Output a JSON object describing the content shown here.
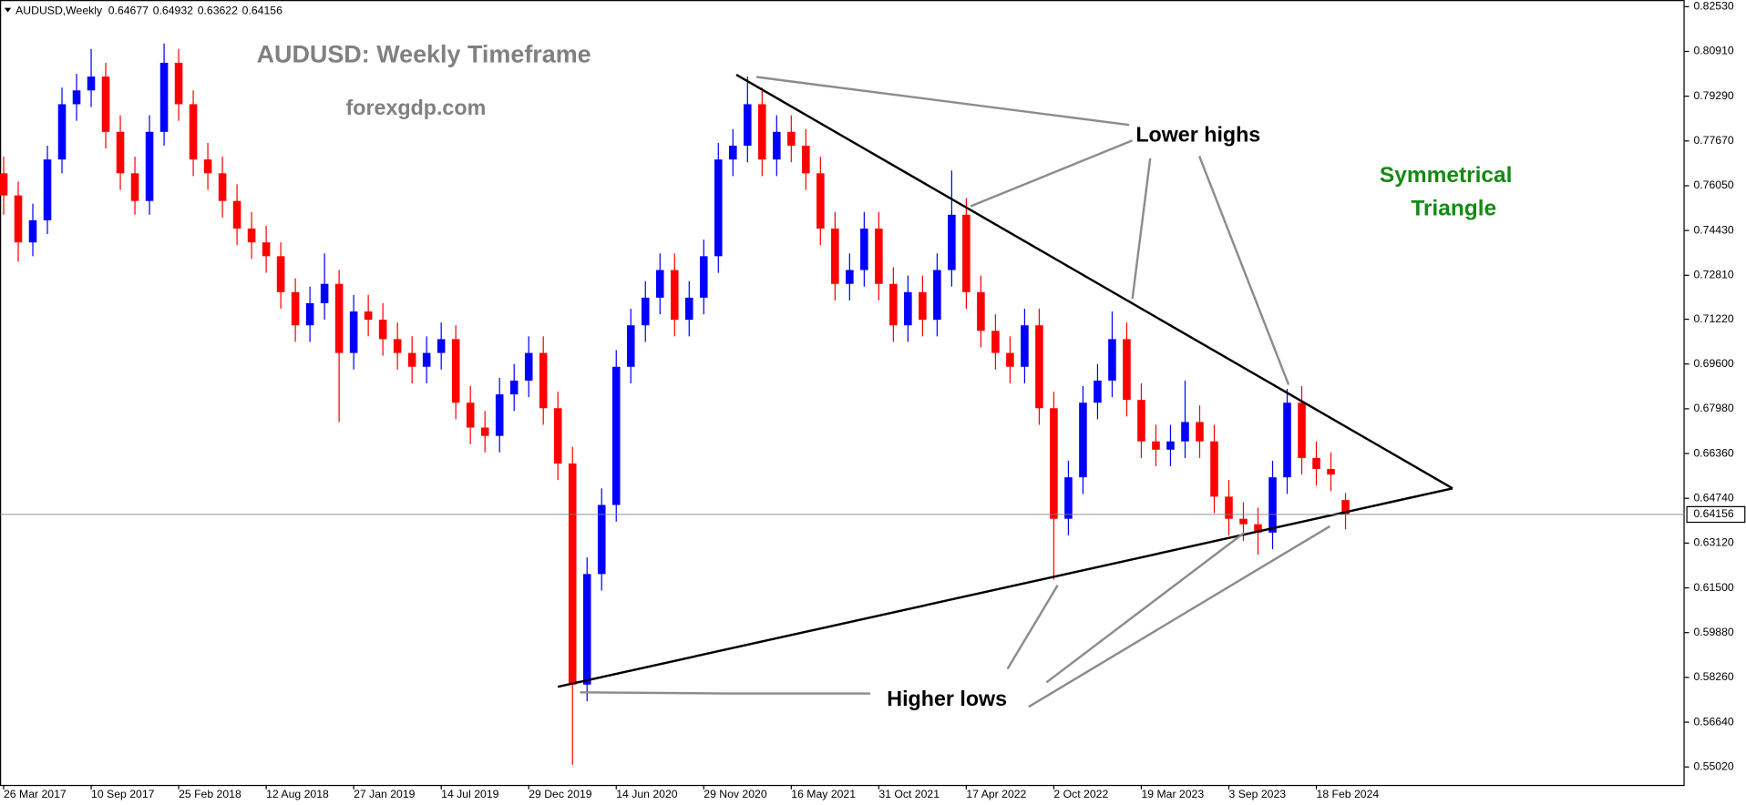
{
  "chart_data": {
    "type": "candlestick",
    "symbol": "AUDUSD,Weekly",
    "title": "AUDUSD: Weekly Timeframe",
    "subtitle": "forexgdp.com",
    "annotations": {
      "lower_highs": "Lower highs",
      "higher_lows": "Higher lows",
      "pattern": [
        "Symmetrical",
        "Triangle"
      ]
    },
    "up_color": "#0000ff",
    "down_color": "#ff0000",
    "x": [
      0,
      4,
      8,
      12,
      16,
      20,
      24,
      28,
      32,
      36,
      40,
      44,
      48,
      52,
      56,
      60,
      64,
      68,
      72,
      76,
      80,
      84,
      88,
      92,
      96,
      100,
      104,
      108,
      112,
      116,
      120,
      124,
      128,
      132,
      136,
      140,
      144,
      148,
      152,
      156,
      160,
      164,
      168,
      172,
      176,
      180,
      184,
      188,
      192,
      196,
      200,
      204,
      208,
      212,
      216,
      220,
      224,
      228,
      232,
      236,
      240,
      244,
      248,
      252,
      256,
      260,
      264,
      268,
      272,
      276,
      280,
      284,
      288,
      292,
      296,
      300,
      304,
      308,
      312,
      316,
      320,
      324,
      328,
      332,
      336,
      340,
      344,
      348,
      352,
      356,
      360,
      364,
      368
    ],
    "open": [
      0.765,
      0.757,
      0.74,
      0.748,
      0.77,
      0.79,
      0.795,
      0.8,
      0.78,
      0.765,
      0.755,
      0.78,
      0.805,
      0.79,
      0.77,
      0.765,
      0.755,
      0.745,
      0.74,
      0.735,
      0.722,
      0.71,
      0.718,
      0.725,
      0.7,
      0.715,
      0.712,
      0.705,
      0.7,
      0.695,
      0.7,
      0.705,
      0.682,
      0.673,
      0.67,
      0.685,
      0.69,
      0.7,
      0.68,
      0.66,
      0.58,
      0.62,
      0.645,
      0.695,
      0.71,
      0.72,
      0.73,
      0.712,
      0.72,
      0.735,
      0.77,
      0.775,
      0.79,
      0.77,
      0.78,
      0.775,
      0.765,
      0.745,
      0.725,
      0.73,
      0.745,
      0.725,
      0.71,
      0.722,
      0.712,
      0.73,
      0.75,
      0.722,
      0.708,
      0.7,
      0.695,
      0.71,
      0.68,
      0.64,
      0.655,
      0.682,
      0.69,
      0.705,
      0.683,
      0.668,
      0.665,
      0.668,
      0.675,
      0.668,
      0.648,
      0.64,
      0.638,
      0.635,
      0.655,
      0.682,
      0.662,
      0.658,
      0.64677
    ],
    "high": [
      0.771,
      0.762,
      0.754,
      0.775,
      0.796,
      0.801,
      0.81,
      0.805,
      0.786,
      0.771,
      0.786,
      0.812,
      0.81,
      0.795,
      0.776,
      0.771,
      0.761,
      0.751,
      0.746,
      0.74,
      0.727,
      0.724,
      0.736,
      0.73,
      0.721,
      0.721,
      0.718,
      0.711,
      0.706,
      0.706,
      0.711,
      0.71,
      0.688,
      0.679,
      0.691,
      0.696,
      0.706,
      0.706,
      0.686,
      0.666,
      0.626,
      0.651,
      0.701,
      0.716,
      0.726,
      0.736,
      0.736,
      0.726,
      0.741,
      0.776,
      0.781,
      0.8,
      0.796,
      0.786,
      0.786,
      0.781,
      0.771,
      0.751,
      0.736,
      0.751,
      0.751,
      0.731,
      0.728,
      0.728,
      0.736,
      0.766,
      0.756,
      0.728,
      0.714,
      0.706,
      0.716,
      0.716,
      0.686,
      0.661,
      0.688,
      0.696,
      0.715,
      0.711,
      0.689,
      0.674,
      0.674,
      0.69,
      0.681,
      0.674,
      0.654,
      0.646,
      0.644,
      0.661,
      0.687,
      0.688,
      0.668,
      0.664,
      0.64932
    ],
    "low": [
      0.75,
      0.733,
      0.735,
      0.743,
      0.765,
      0.784,
      0.789,
      0.774,
      0.759,
      0.75,
      0.75,
      0.775,
      0.784,
      0.764,
      0.759,
      0.749,
      0.739,
      0.734,
      0.729,
      0.716,
      0.704,
      0.704,
      0.712,
      0.675,
      0.694,
      0.706,
      0.699,
      0.694,
      0.689,
      0.689,
      0.694,
      0.676,
      0.667,
      0.664,
      0.664,
      0.679,
      0.684,
      0.674,
      0.654,
      0.551,
      0.574,
      0.614,
      0.639,
      0.689,
      0.704,
      0.714,
      0.706,
      0.706,
      0.714,
      0.729,
      0.764,
      0.769,
      0.764,
      0.764,
      0.769,
      0.759,
      0.739,
      0.719,
      0.719,
      0.724,
      0.719,
      0.704,
      0.704,
      0.706,
      0.706,
      0.724,
      0.716,
      0.702,
      0.694,
      0.689,
      0.689,
      0.674,
      0.618,
      0.634,
      0.649,
      0.676,
      0.684,
      0.677,
      0.662,
      0.659,
      0.659,
      0.662,
      0.662,
      0.642,
      0.634,
      0.632,
      0.627,
      0.629,
      0.649,
      0.656,
      0.652,
      0.65,
      0.63622
    ],
    "close": [
      0.757,
      0.74,
      0.748,
      0.77,
      0.79,
      0.795,
      0.8,
      0.78,
      0.765,
      0.755,
      0.78,
      0.805,
      0.79,
      0.77,
      0.765,
      0.755,
      0.745,
      0.74,
      0.735,
      0.722,
      0.71,
      0.718,
      0.725,
      0.7,
      0.715,
      0.712,
      0.705,
      0.7,
      0.695,
      0.7,
      0.705,
      0.682,
      0.673,
      0.67,
      0.685,
      0.69,
      0.7,
      0.68,
      0.66,
      0.58,
      0.62,
      0.645,
      0.695,
      0.71,
      0.72,
      0.73,
      0.712,
      0.72,
      0.735,
      0.77,
      0.775,
      0.79,
      0.77,
      0.78,
      0.775,
      0.765,
      0.745,
      0.725,
      0.73,
      0.745,
      0.725,
      0.71,
      0.722,
      0.712,
      0.73,
      0.75,
      0.722,
      0.708,
      0.7,
      0.695,
      0.71,
      0.68,
      0.64,
      0.655,
      0.682,
      0.69,
      0.705,
      0.683,
      0.668,
      0.665,
      0.668,
      0.675,
      0.668,
      0.648,
      0.64,
      0.638,
      0.635,
      0.655,
      0.682,
      0.662,
      0.658,
      0.656,
      0.64156
    ],
    "xlim": [
      -1,
      461
    ],
    "ylim": [
      0.5437,
      0.8277
    ],
    "xticks": [
      {
        "value": 0,
        "label": "26 Mar 2017"
      },
      {
        "value": 24,
        "label": "10 Sep 2017"
      },
      {
        "value": 48,
        "label": "25 Feb 2018"
      },
      {
        "value": 72,
        "label": "12 Aug 2018"
      },
      {
        "value": 96,
        "label": "27 Jan 2019"
      },
      {
        "value": 120,
        "label": "14 Jul 2019"
      },
      {
        "value": 144,
        "label": "29 Dec 2019"
      },
      {
        "value": 168,
        "label": "14 Jun 2020"
      },
      {
        "value": 192,
        "label": "29 Nov 2020"
      },
      {
        "value": 216,
        "label": "16 May 2021"
      },
      {
        "value": 240,
        "label": "31 Oct 2021"
      },
      {
        "value": 264,
        "label": "17 Apr 2022"
      },
      {
        "value": 288,
        "label": "2 Oct 2022"
      },
      {
        "value": 312,
        "label": "19 Mar 2023"
      },
      {
        "value": 336,
        "label": "3 Sep 2023"
      },
      {
        "value": 360,
        "label": "18 Feb 2024"
      }
    ],
    "yticks": [
      {
        "value": 0.8253,
        "label": "0.82530"
      },
      {
        "value": 0.8091,
        "label": "0.80910"
      },
      {
        "value": 0.7929,
        "label": "0.79290"
      },
      {
        "value": 0.7767,
        "label": "0.77670"
      },
      {
        "value": 0.7605,
        "label": "0.76050"
      },
      {
        "value": 0.7443,
        "label": "0.74430"
      },
      {
        "value": 0.7281,
        "label": "0.72810"
      },
      {
        "value": 0.7122,
        "label": "0.71220"
      },
      {
        "value": 0.696,
        "label": "0.69600"
      },
      {
        "value": 0.6798,
        "label": "0.67980"
      },
      {
        "value": 0.6636,
        "label": "0.66360"
      },
      {
        "value": 0.6474,
        "label": "0.64740"
      },
      {
        "value": 0.6312,
        "label": "0.63120"
      },
      {
        "value": 0.615,
        "label": "0.61500"
      },
      {
        "value": 0.5988,
        "label": "0.59880"
      },
      {
        "value": 0.5826,
        "label": "0.58260"
      },
      {
        "value": 0.5664,
        "label": "0.56640"
      },
      {
        "value": 0.5502,
        "label": "0.55020"
      }
    ]
  }
}
